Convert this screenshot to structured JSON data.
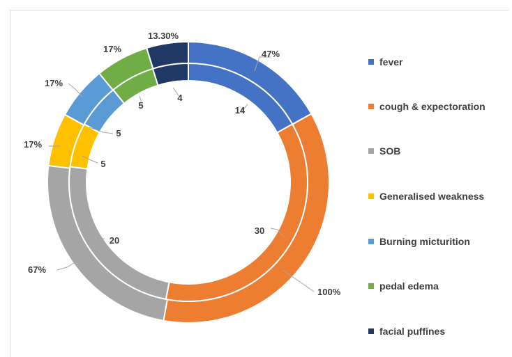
{
  "chart_data": {
    "type": "donut",
    "categories": [
      "fever",
      "cough & expectoration",
      "SOB",
      "Generalised weakness",
      "Burning micturition",
      "pedal edema",
      "facial puffines"
    ],
    "colors": [
      "#4472c4",
      "#ed7d31",
      "#a5a5a5",
      "#ffc000",
      "#5b9bd5",
      "#70ad47",
      "#203864"
    ],
    "series": [
      {
        "ring": "outer",
        "values": [
          47,
          100,
          67,
          17,
          17,
          17,
          13.3
        ],
        "labels": [
          "47%",
          "100%",
          "67%",
          "17%",
          "17%",
          "17%",
          "13.30%"
        ]
      },
      {
        "ring": "inner",
        "values": [
          14,
          30,
          20,
          5,
          5,
          5,
          4
        ],
        "labels": [
          "14",
          "30",
          "20",
          "5",
          "5",
          "5",
          "4"
        ]
      }
    ],
    "legend": "right"
  }
}
